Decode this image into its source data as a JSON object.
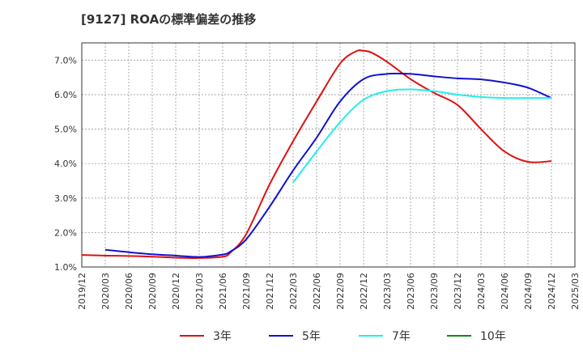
{
  "chart_data": {
    "type": "line",
    "title": "[9127]  ROAの標準偏差の推移",
    "xlabel": "",
    "ylabel": "",
    "ylim": [
      1.0,
      7.5
    ],
    "yticks": [
      "1.0%",
      "2.0%",
      "3.0%",
      "4.0%",
      "5.0%",
      "6.0%",
      "7.0%"
    ],
    "yticks_values": [
      1.0,
      2.0,
      3.0,
      4.0,
      5.0,
      6.0,
      7.0
    ],
    "x_categories": [
      "2019/12",
      "2020/03",
      "2020/06",
      "2020/09",
      "2020/12",
      "2021/03",
      "2021/06",
      "2021/09",
      "2021/12",
      "2022/03",
      "2022/06",
      "2022/09",
      "2022/12",
      "2023/03",
      "2023/06",
      "2023/09",
      "2023/12",
      "2024/03",
      "2024/06",
      "2024/09",
      "2024/12",
      "2025/03"
    ],
    "grid": true,
    "legend_position": "bottom",
    "series": [
      {
        "name": "3年",
        "color": "#dd1111",
        "x": [
          "2019/12",
          "2020/03",
          "2020/06",
          "2020/09",
          "2020/12",
          "2021/03",
          "2021/06",
          "2021/07",
          "2021/09",
          "2021/12",
          "2022/03",
          "2022/06",
          "2022/09",
          "2022/11",
          "2022/12",
          "2023/01",
          "2023/03",
          "2023/06",
          "2023/09",
          "2023/12",
          "2024/03",
          "2024/06",
          "2024/09",
          "2024/12"
        ],
        "values": [
          1.35,
          1.33,
          1.32,
          1.3,
          1.27,
          1.26,
          1.3,
          1.42,
          1.95,
          3.4,
          4.65,
          5.8,
          6.9,
          7.25,
          7.27,
          7.22,
          6.95,
          6.45,
          6.05,
          5.7,
          5.0,
          4.35,
          4.05,
          4.07
        ]
      },
      {
        "name": "5年",
        "color": "#1111cc",
        "x": [
          "2020/03",
          "2020/06",
          "2020/09",
          "2020/12",
          "2021/03",
          "2021/06",
          "2021/07",
          "2021/09",
          "2021/12",
          "2022/03",
          "2022/06",
          "2022/09",
          "2022/12",
          "2023/03",
          "2023/06",
          "2023/09",
          "2023/12",
          "2024/03",
          "2024/06",
          "2024/09",
          "2024/12"
        ],
        "values": [
          1.5,
          1.43,
          1.37,
          1.33,
          1.29,
          1.36,
          1.45,
          1.8,
          2.75,
          3.8,
          4.75,
          5.8,
          6.45,
          6.6,
          6.6,
          6.53,
          6.47,
          6.44,
          6.35,
          6.2,
          5.9
        ]
      },
      {
        "name": "7年",
        "color": "#22eeee",
        "x": [
          "2022/03",
          "2022/06",
          "2022/09",
          "2022/12",
          "2023/03",
          "2023/06",
          "2023/09",
          "2023/12",
          "2024/03",
          "2024/06",
          "2024/09",
          "2024/12"
        ],
        "values": [
          3.45,
          4.35,
          5.2,
          5.85,
          6.1,
          6.15,
          6.1,
          6.0,
          5.93,
          5.9,
          5.9,
          5.9
        ]
      },
      {
        "name": "10年",
        "color": "#118811",
        "x": [],
        "values": []
      }
    ]
  }
}
